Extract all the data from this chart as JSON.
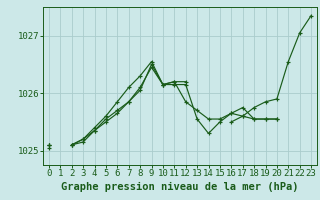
{
  "xlabel": "Graphe pression niveau de la mer (hPa)",
  "background_color": "#cce8e8",
  "grid_color": "#aacccc",
  "line_color": "#1a5c1a",
  "x_values": [
    0,
    1,
    2,
    3,
    4,
    5,
    6,
    7,
    8,
    9,
    10,
    11,
    12,
    13,
    14,
    15,
    16,
    17,
    18,
    19,
    20,
    21,
    22,
    23
  ],
  "line1": [
    1025.1,
    null,
    null,
    null,
    null,
    null,
    null,
    null,
    null,
    null,
    null,
    null,
    null,
    null,
    null,
    null,
    1025.5,
    1025.6,
    1025.75,
    1025.85,
    1025.9,
    1026.55,
    1027.05,
    1027.35
  ],
  "line2": [
    1025.1,
    null,
    1025.1,
    1025.15,
    1025.35,
    1025.5,
    1025.65,
    1025.85,
    1026.05,
    1026.5,
    1026.15,
    1026.15,
    1026.15,
    1025.55,
    1025.3,
    1025.5,
    1025.65,
    1025.75,
    1025.55,
    1025.55,
    1025.55,
    null,
    null,
    null
  ],
  "line3": [
    1025.1,
    null,
    1025.1,
    1025.2,
    1025.35,
    1025.55,
    1025.7,
    1025.85,
    1026.1,
    1026.45,
    1026.15,
    1026.2,
    1025.85,
    1025.7,
    1025.55,
    1025.55,
    1025.65,
    1025.6,
    1025.55,
    1025.55,
    1025.55,
    null,
    null,
    null
  ],
  "line4": [
    1025.05,
    null,
    1025.1,
    1025.2,
    1025.4,
    1025.6,
    1025.85,
    1026.1,
    1026.3,
    1026.55,
    1026.15,
    1026.2,
    1026.2,
    null,
    null,
    null,
    null,
    null,
    null,
    null,
    null,
    null,
    null,
    null
  ],
  "ylim": [
    1024.75,
    1027.5
  ],
  "yticks": [
    1025,
    1026,
    1027
  ],
  "xticks": [
    0,
    1,
    2,
    3,
    4,
    5,
    6,
    7,
    8,
    9,
    10,
    11,
    12,
    13,
    14,
    15,
    16,
    17,
    18,
    19,
    20,
    21,
    22,
    23
  ],
  "xlabel_fontsize": 7.5,
  "tick_fontsize": 6.5
}
